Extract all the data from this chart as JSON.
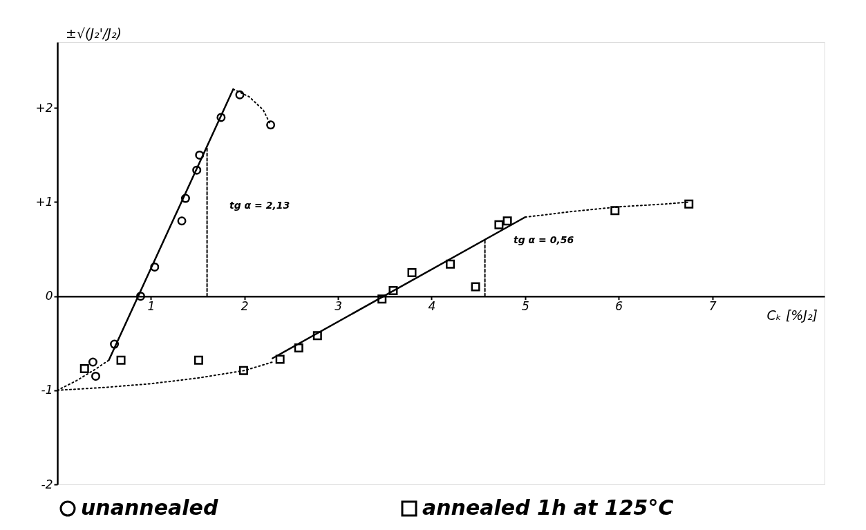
{
  "chart_data": {
    "type": "scatter",
    "xlabel": "Cₖ [%J₂]",
    "ylabel": "±√(J₂'/J₂)",
    "xlim": [
      0,
      8.2
    ],
    "ylim": [
      -2,
      2.7
    ],
    "xticks": [
      1,
      2,
      3,
      4,
      5,
      6,
      7
    ],
    "yticks": [
      {
        "value": -2,
        "label": "-2"
      },
      {
        "value": -1,
        "label": "-1"
      },
      {
        "value": 0,
        "label": "0"
      },
      {
        "value": 1,
        "label": "+1"
      },
      {
        "value": 2,
        "label": "+2"
      }
    ],
    "grid": false,
    "legend": "bottom",
    "series": [
      {
        "name": "unannealed",
        "marker": "circle",
        "color": "#000000",
        "x": [
          0.38,
          0.41,
          0.61,
          0.89,
          1.04,
          1.33,
          1.37,
          1.49,
          1.52,
          1.75,
          1.95,
          2.28
        ],
        "values": [
          -0.7,
          -0.85,
          -0.51,
          0,
          0.31,
          0.8,
          1.04,
          1.34,
          1.5,
          1.9,
          2.14,
          1.82
        ]
      },
      {
        "name": "annealed 1h at 125°C",
        "marker": "square",
        "color": "#000000",
        "x": [
          0.29,
          0.68,
          1.51,
          1.99,
          2.38,
          2.58,
          2.78,
          3.47,
          3.59,
          3.79,
          4.2,
          4.47,
          4.72,
          4.81,
          5.96,
          6.75
        ],
        "values": [
          -0.77,
          -0.68,
          -0.68,
          -0.79,
          -0.67,
          -0.55,
          -0.42,
          -0.03,
          0.06,
          0.25,
          0.34,
          0.1,
          0.76,
          0.8,
          0.91,
          0.98
        ]
      },
      {
        "type": "line",
        "line_style": "solid",
        "color": "#000000",
        "x": [
          0.55,
          1.88
        ],
        "values": [
          -0.68,
          2.2
        ]
      },
      {
        "type": "line",
        "line_style": "dotted",
        "color": "#000000",
        "x": [
          0,
          0.2,
          0.4,
          0.55
        ],
        "values": [
          -1,
          -0.9,
          -0.78,
          -0.68
        ]
      },
      {
        "type": "line",
        "line_style": "dotted",
        "color": "#000000",
        "x": [
          1.88,
          2.05,
          2.2,
          2.28
        ],
        "values": [
          2.2,
          2.12,
          1.98,
          1.82
        ]
      },
      {
        "type": "line",
        "line_style": "dotted",
        "color": "#000000",
        "x": [
          0,
          0.5,
          1,
          1.5,
          2,
          2.3
        ],
        "values": [
          -1,
          -0.97,
          -0.93,
          -0.87,
          -0.79,
          -0.7
        ]
      },
      {
        "type": "line",
        "line_style": "solid",
        "color": "#000000",
        "x": [
          2.3,
          5.0
        ],
        "values": [
          -0.66,
          0.84
        ]
      },
      {
        "type": "line",
        "line_style": "dotted",
        "color": "#000000",
        "x": [
          5.0,
          5.5,
          6,
          6.5,
          6.75
        ],
        "values": [
          0.84,
          0.9,
          0.95,
          0.98,
          1.0
        ]
      },
      {
        "type": "line",
        "line_style": "dashed",
        "color": "#000000",
        "x": [
          1.6,
          1.6
        ],
        "values": [
          0,
          1.57
        ]
      },
      {
        "type": "line",
        "line_style": "dashed",
        "color": "#000000",
        "x": [
          4.57,
          4.57
        ],
        "values": [
          0,
          0.61
        ]
      }
    ],
    "annotations": [
      "tg α = 2,13",
      "tg α = 0,56"
    ]
  }
}
